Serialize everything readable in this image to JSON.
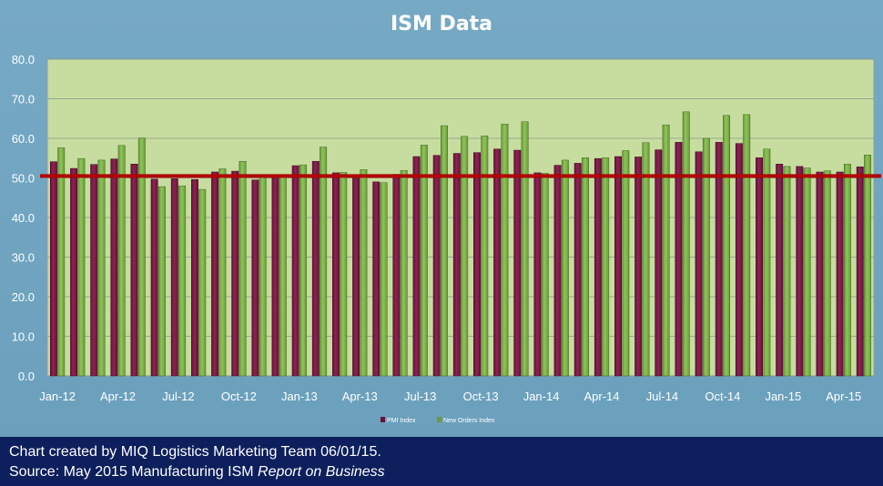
{
  "chart_data": {
    "type": "bar",
    "title": "ISM Data",
    "xlabel": "",
    "ylabel": "",
    "ylim": [
      0,
      80
    ],
    "ytick_labels": [
      "0.0",
      "10.0",
      "20.0",
      "30.0",
      "40.0",
      "50.0",
      "60.0",
      "70.0",
      "80.0"
    ],
    "grid": true,
    "legend_position": "bottom-center",
    "categories": [
      "Jan-12",
      "Feb-12",
      "Mar-12",
      "Apr-12",
      "May-12",
      "Jun-12",
      "Jul-12",
      "Aug-12",
      "Sep-12",
      "Oct-12",
      "Nov-12",
      "Dec-12",
      "Jan-13",
      "Feb-13",
      "Mar-13",
      "Apr-13",
      "May-13",
      "Jun-13",
      "Jul-13",
      "Aug-13",
      "Sep-13",
      "Oct-13",
      "Nov-13",
      "Dec-13",
      "Jan-14",
      "Feb-14",
      "Mar-14",
      "Apr-14",
      "May-14",
      "Jun-14",
      "Jul-14",
      "Aug-14",
      "Sep-14",
      "Oct-14",
      "Nov-14",
      "Dec-14",
      "Jan-15",
      "Feb-15",
      "Mar-15",
      "Apr-15",
      "May-15"
    ],
    "xtick_labels": [
      "Jan-12",
      "Apr-12",
      "Jul-12",
      "Oct-12",
      "Jan-13",
      "Apr-13",
      "Jul-13",
      "Oct-13",
      "Jan-14",
      "Apr-14",
      "Jul-14",
      "Oct-14",
      "Jan-15",
      "Apr-15"
    ],
    "series": [
      {
        "name": "PMI Index",
        "color": "#6b0f3a",
        "values": [
          54.1,
          52.4,
          53.4,
          54.8,
          53.5,
          49.7,
          49.8,
          49.6,
          51.5,
          51.7,
          49.5,
          50.2,
          53.1,
          54.2,
          51.3,
          50.7,
          49.0,
          50.9,
          55.4,
          55.7,
          56.2,
          56.4,
          57.3,
          57.0,
          51.3,
          53.2,
          53.7,
          54.9,
          55.4,
          55.3,
          57.1,
          59.0,
          56.6,
          59.0,
          58.7,
          55.1,
          53.5,
          52.9,
          51.5,
          51.5,
          52.8
        ]
      },
      {
        "name": "New Orders Index",
        "color": "#6a9a3a",
        "values": [
          57.6,
          54.9,
          54.5,
          58.2,
          60.1,
          47.8,
          48.0,
          47.1,
          52.3,
          54.2,
          50.3,
          50.3,
          53.3,
          57.8,
          51.4,
          52.1,
          48.8,
          51.9,
          58.3,
          63.2,
          60.5,
          60.6,
          63.6,
          64.2,
          51.2,
          54.5,
          55.1,
          55.1,
          56.9,
          58.9,
          63.4,
          66.7,
          60.0,
          65.8,
          66.0,
          57.3,
          52.9,
          52.5,
          51.8,
          53.5,
          55.8
        ]
      }
    ],
    "reference_line": {
      "value": 50.5,
      "color": "#b00000"
    }
  },
  "footer": {
    "line1": "Chart created by MIQ Logistics Marketing Team 06/01/15.",
    "line2_prefix": "Source: May 2015 Manufacturing ISM ",
    "line2_italic": "Report on Business"
  },
  "colors": {
    "background": "#6fa3bf",
    "plot_area": "#c7dc9f",
    "footer_bg": "#0d1f5c"
  }
}
